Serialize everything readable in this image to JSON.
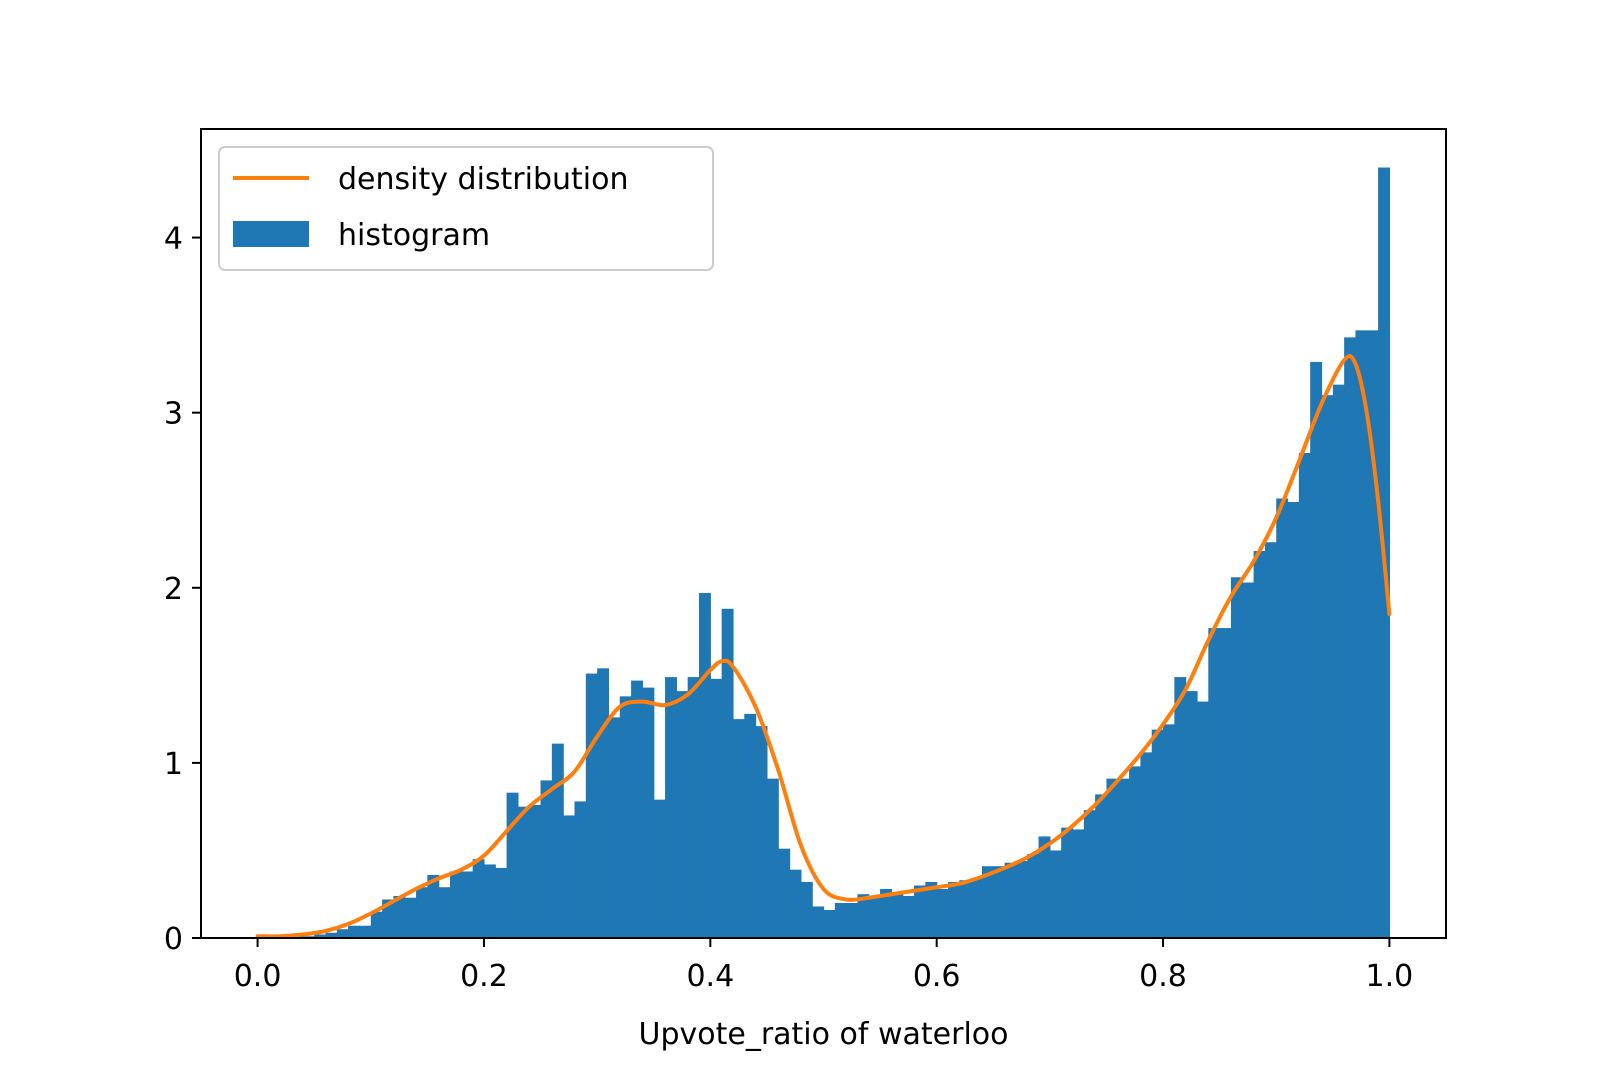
{
  "chart_data": {
    "type": "bar",
    "title": "",
    "xlabel": "Upvote_ratio of waterloo",
    "ylabel": "",
    "xlim": [
      -0.05,
      1.05
    ],
    "ylim": [
      0,
      4.62
    ],
    "grid": false,
    "legend_placement": "top-left",
    "x_ticks": [
      0.0,
      0.2,
      0.4,
      0.6,
      0.8,
      1.0
    ],
    "x_tick_labels": [
      "0.0",
      "0.2",
      "0.4",
      "0.6",
      "0.8",
      "1.0"
    ],
    "y_ticks": [
      0,
      1,
      2,
      3,
      4
    ],
    "y_tick_labels": [
      "0",
      "1",
      "2",
      "3",
      "4"
    ],
    "histogram": {
      "name": "histogram",
      "color": "#1f77b4",
      "bin_start": 0.0,
      "bin_width": 0.01,
      "values": [
        0,
        0,
        0,
        0.01,
        0.01,
        0.02,
        0.03,
        0.05,
        0.07,
        0.07,
        0.15,
        0.22,
        0.24,
        0.23,
        0.29,
        0.36,
        0.29,
        0.38,
        0.38,
        0.45,
        0.42,
        0.4,
        0.83,
        0.75,
        0.76,
        0.9,
        1.11,
        0.7,
        0.78,
        1.51,
        1.54,
        1.26,
        1.38,
        1.47,
        1.43,
        0.79,
        1.49,
        1.41,
        1.49,
        1.97,
        1.48,
        1.88,
        1.25,
        1.28,
        1.21,
        0.91,
        0.51,
        0.39,
        0.32,
        0.18,
        0.16,
        0.2,
        0.2,
        0.25,
        0.24,
        0.28,
        0.25,
        0.24,
        0.3,
        0.32,
        0.28,
        0.32,
        0.33,
        0.34,
        0.41,
        0.41,
        0.43,
        0.44,
        0.48,
        0.58,
        0.5,
        0.63,
        0.62,
        0.73,
        0.82,
        0.91,
        0.91,
        0.98,
        1.06,
        1.19,
        1.22,
        1.49,
        1.41,
        1.35,
        1.77,
        1.77,
        2.06,
        2.03,
        2.21,
        2.26,
        2.51,
        2.49,
        2.77,
        3.29,
        3.1,
        3.16,
        3.43,
        3.47,
        3.47,
        4.4
      ]
    },
    "density": {
      "name": "density distribution",
      "color": "#ff7f0e",
      "x": [
        0.0,
        0.02,
        0.04,
        0.06,
        0.08,
        0.1,
        0.12,
        0.14,
        0.16,
        0.18,
        0.2,
        0.22,
        0.24,
        0.26,
        0.28,
        0.3,
        0.32,
        0.34,
        0.36,
        0.38,
        0.4,
        0.41,
        0.42,
        0.44,
        0.46,
        0.48,
        0.5,
        0.52,
        0.54,
        0.56,
        0.58,
        0.6,
        0.62,
        0.64,
        0.66,
        0.68,
        0.7,
        0.72,
        0.74,
        0.76,
        0.78,
        0.8,
        0.82,
        0.84,
        0.86,
        0.88,
        0.9,
        0.92,
        0.94,
        0.96,
        0.97,
        0.98,
        0.99,
        1.0
      ],
      "y": [
        0.01,
        0.01,
        0.02,
        0.04,
        0.08,
        0.14,
        0.21,
        0.28,
        0.34,
        0.39,
        0.47,
        0.61,
        0.75,
        0.85,
        0.95,
        1.15,
        1.32,
        1.35,
        1.33,
        1.39,
        1.53,
        1.58,
        1.55,
        1.32,
        0.96,
        0.53,
        0.28,
        0.22,
        0.23,
        0.25,
        0.27,
        0.29,
        0.31,
        0.35,
        0.4,
        0.46,
        0.54,
        0.64,
        0.76,
        0.9,
        1.05,
        1.22,
        1.42,
        1.7,
        1.95,
        2.15,
        2.4,
        2.72,
        3.05,
        3.3,
        3.28,
        3.0,
        2.5,
        1.85
      ]
    }
  }
}
